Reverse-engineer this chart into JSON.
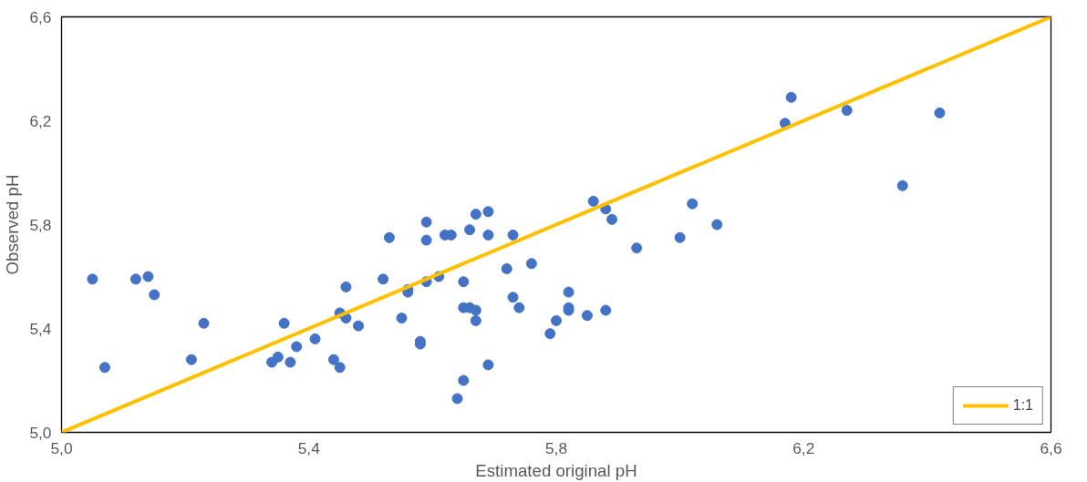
{
  "chart_data": {
    "type": "scatter",
    "xlabel": "Estimated original pH",
    "ylabel": "Observed pH",
    "xlim": [
      5.0,
      6.6
    ],
    "ylim": [
      5.0,
      6.6
    ],
    "xticks": [
      {
        "value": 5.0,
        "label": "5,0"
      },
      {
        "value": 5.4,
        "label": "5,4"
      },
      {
        "value": 5.8,
        "label": "5,8"
      },
      {
        "value": 6.2,
        "label": "6,2"
      },
      {
        "value": 6.6,
        "label": "6,6"
      }
    ],
    "yticks": [
      {
        "value": 5.0,
        "label": "5,0"
      },
      {
        "value": 5.4,
        "label": "5,4"
      },
      {
        "value": 5.8,
        "label": "5,8"
      },
      {
        "value": 6.2,
        "label": "6,2"
      },
      {
        "value": 6.6,
        "label": "6,6"
      }
    ],
    "grid": false,
    "legend": "bottom right",
    "series": [
      {
        "marker": "circle",
        "color": "#4472c4",
        "x": [
          5.05,
          5.07,
          5.12,
          5.14,
          5.15,
          5.21,
          5.23,
          5.34,
          5.35,
          5.36,
          5.37,
          5.38,
          5.41,
          5.44,
          5.45,
          5.45,
          5.46,
          5.46,
          5.48,
          5.52,
          5.53,
          5.55,
          5.56,
          5.56,
          5.58,
          5.58,
          5.59,
          5.59,
          5.59,
          5.61,
          5.62,
          5.63,
          5.64,
          5.65,
          5.65,
          5.65,
          5.66,
          5.66,
          5.67,
          5.67,
          5.67,
          5.69,
          5.69,
          5.69,
          5.72,
          5.73,
          5.73,
          5.74,
          5.76,
          5.79,
          5.8,
          5.82,
          5.82,
          5.82,
          5.85,
          5.86,
          5.88,
          5.88,
          5.89,
          5.93,
          6.0,
          6.02,
          6.06,
          6.17,
          6.18,
          6.27,
          6.36,
          6.42
        ],
        "values": [
          5.59,
          5.25,
          5.59,
          5.6,
          5.53,
          5.28,
          5.42,
          5.27,
          5.29,
          5.42,
          5.27,
          5.33,
          5.36,
          5.28,
          5.46,
          5.25,
          5.56,
          5.44,
          5.41,
          5.59,
          5.75,
          5.44,
          5.55,
          5.54,
          5.35,
          5.34,
          5.81,
          5.74,
          5.58,
          5.6,
          5.76,
          5.76,
          5.13,
          5.2,
          5.58,
          5.48,
          5.78,
          5.48,
          5.84,
          5.47,
          5.43,
          5.85,
          5.76,
          5.26,
          5.63,
          5.76,
          5.52,
          5.48,
          5.65,
          5.38,
          5.43,
          5.54,
          5.48,
          5.47,
          5.45,
          5.89,
          5.86,
          5.47,
          5.82,
          5.71,
          5.75,
          5.88,
          5.8,
          6.19,
          6.29,
          6.24,
          5.95,
          6.23
        ]
      },
      {
        "type": "line",
        "marker": "none",
        "name": "1:1",
        "color": "#ffc000",
        "x": [
          5.0,
          6.6
        ],
        "values": [
          5.0,
          6.6
        ]
      }
    ]
  }
}
